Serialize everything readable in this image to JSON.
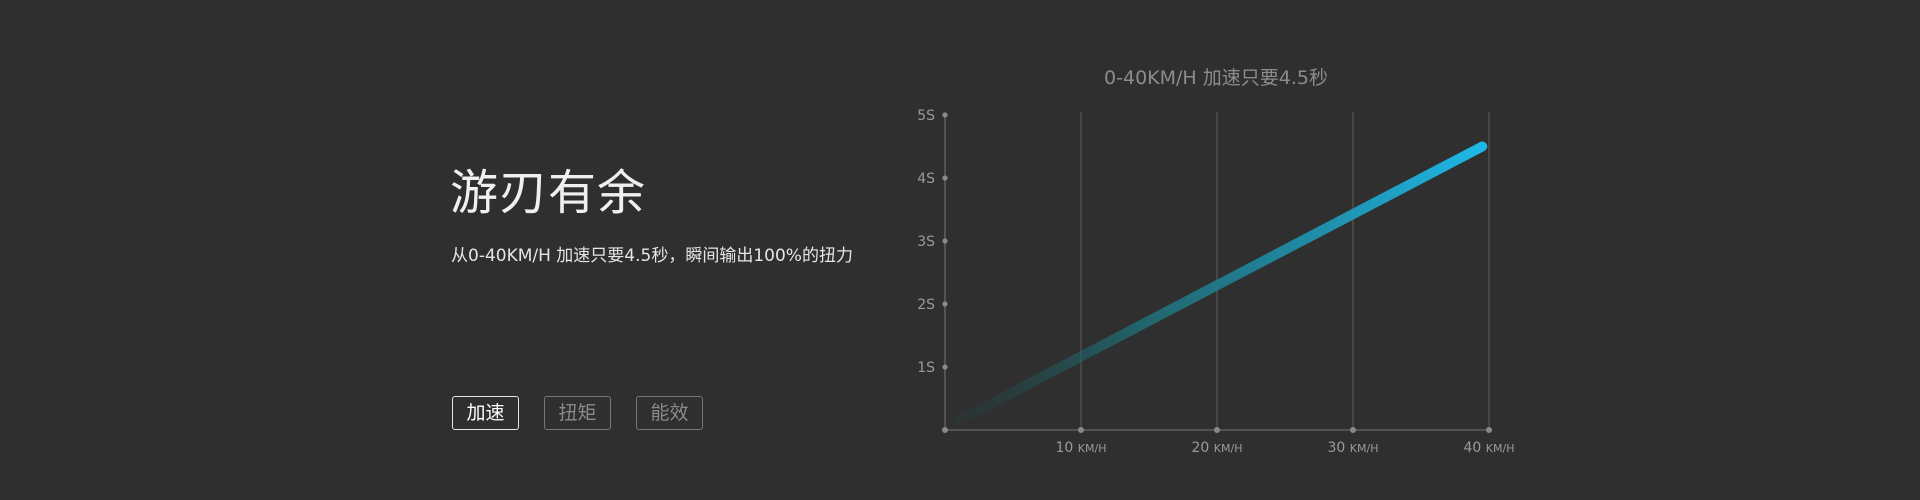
{
  "section": {
    "heading": "游刃有余",
    "subtext": "从0-40KM/H 加速只要4.5秒，瞬间输出100%的扭力"
  },
  "tabs": [
    {
      "label": "加速",
      "active": true
    },
    {
      "label": "扭矩",
      "active": false
    },
    {
      "label": "能效",
      "active": false
    }
  ],
  "colors": {
    "background": "#2f2f2f",
    "accent": "#1eb8e8",
    "line_start": "#1e4a48"
  },
  "chart_data": {
    "type": "line",
    "title": "0-40KM/H 加速只要4.5秒",
    "x_ticks": [
      {
        "value": 10,
        "label": "10",
        "unit": "KM/H"
      },
      {
        "value": 20,
        "label": "20",
        "unit": "KM/H"
      },
      {
        "value": 30,
        "label": "30",
        "unit": "KM/H"
      },
      {
        "value": 40,
        "label": "40",
        "unit": "KM/H"
      }
    ],
    "y_ticks": [
      {
        "value": 1,
        "label": "1S"
      },
      {
        "value": 2,
        "label": "2S"
      },
      {
        "value": 3,
        "label": "3S"
      },
      {
        "value": 4,
        "label": "4S"
      },
      {
        "value": 5,
        "label": "5S"
      }
    ],
    "xlim": [
      0,
      40
    ],
    "ylim": [
      0,
      5
    ],
    "grid": "vertical",
    "series": [
      {
        "x": [
          1,
          39.5
        ],
        "y": [
          0.15,
          4.5
        ]
      }
    ]
  }
}
